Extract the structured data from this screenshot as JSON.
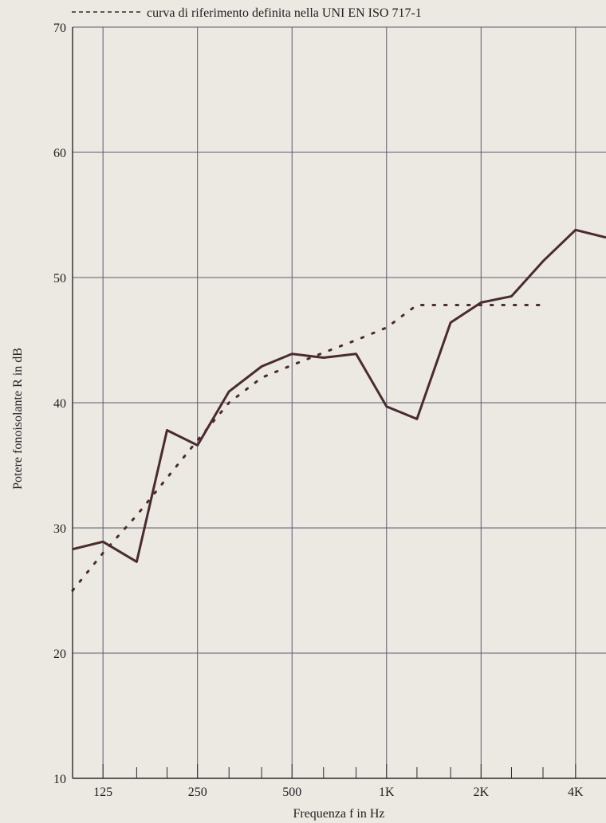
{
  "chart_data": {
    "type": "line",
    "legend_text": "curva di riferimento definita nella UNI EN ISO 717-1",
    "legend_position": "top",
    "xlabel": "Frequenza f in Hz",
    "ylabel": "Potere fonoisolante R in dB",
    "x_scale": "log",
    "ylim": [
      10,
      70
    ],
    "xlim": [
      100,
      5000
    ],
    "y_ticks": [
      10,
      20,
      30,
      40,
      50,
      60,
      70
    ],
    "x_tick_labels": [
      {
        "x": 125,
        "label": "125"
      },
      {
        "x": 250,
        "label": "250"
      },
      {
        "x": 500,
        "label": "500"
      },
      {
        "x": 1000,
        "label": "1K"
      },
      {
        "x": 2000,
        "label": "2K"
      },
      {
        "x": 4000,
        "label": "4K"
      }
    ],
    "x_gridlines": [
      125,
      250,
      500,
      1000,
      2000,
      4000
    ],
    "x_minor_ticks": [
      160,
      200,
      315,
      400,
      630,
      800,
      1250,
      1600,
      2500,
      3150
    ],
    "grid": true,
    "series": [
      {
        "style": "solid",
        "color": "#4a2b30",
        "x": [
          100,
          125,
          160,
          200,
          250,
          315,
          400,
          500,
          630,
          800,
          1000,
          1250,
          1600,
          2000,
          2500,
          3150,
          4000,
          5000
        ],
        "y": [
          28.3,
          28.9,
          27.3,
          37.8,
          36.6,
          40.9,
          42.9,
          43.9,
          43.6,
          43.9,
          39.7,
          38.7,
          46.4,
          48.0,
          48.5,
          51.3,
          53.8,
          53.2
        ]
      },
      {
        "style": "dotted",
        "color": "#4a2b30",
        "x": [
          100,
          125,
          160,
          200,
          250,
          315,
          400,
          500,
          630,
          800,
          1000,
          1250,
          1600,
          2000,
          2500,
          3150
        ],
        "y": [
          25.0,
          28.0,
          31.0,
          34.0,
          37.0,
          40.0,
          42.0,
          43.0,
          44.0,
          45.0,
          46.0,
          47.8,
          47.8,
          47.8,
          47.8,
          47.8
        ]
      }
    ]
  }
}
